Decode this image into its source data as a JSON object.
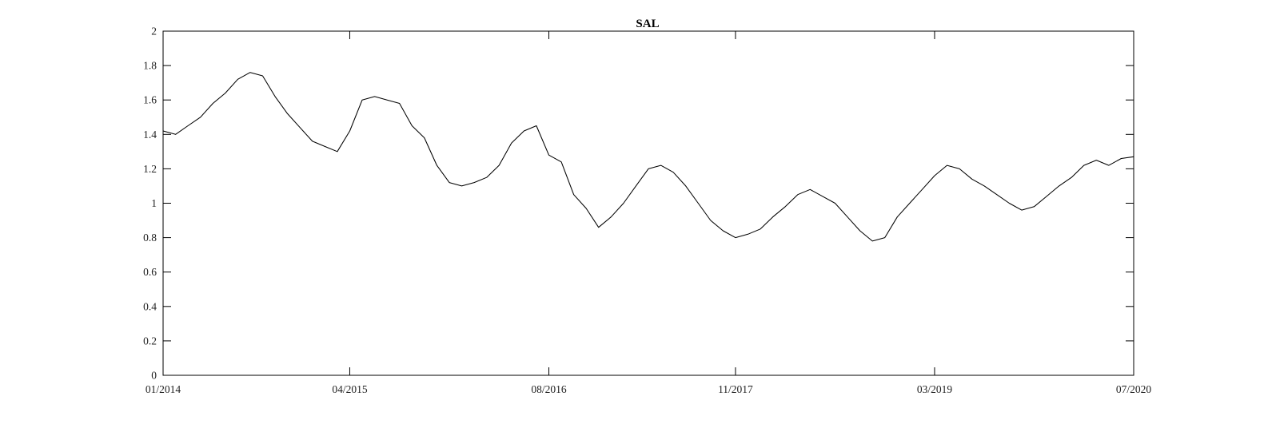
{
  "chart_data": {
    "type": "line",
    "title": "SAL",
    "xlabel": "",
    "ylabel": "",
    "x_range": [
      "01/2014",
      "07/2020"
    ],
    "x_ticks": [
      "01/2014",
      "04/2015",
      "08/2016",
      "11/2017",
      "03/2019",
      "07/2020"
    ],
    "ylim": [
      0,
      2
    ],
    "y_ticks": [
      "0",
      "0.2",
      "0.4",
      "0.6",
      "0.8",
      "1",
      "1.2",
      "1.4",
      "1.6",
      "1.8",
      "2"
    ],
    "grid": false,
    "legend": "none",
    "line_color": "#000000",
    "series": [
      {
        "x": [
          "01/2014",
          "02/2014",
          "03/2014",
          "04/2014",
          "05/2014",
          "06/2014",
          "07/2014",
          "08/2014",
          "09/2014",
          "10/2014",
          "11/2014",
          "12/2014",
          "01/2015",
          "02/2015",
          "03/2015",
          "04/2015",
          "05/2015",
          "06/2015",
          "07/2015",
          "08/2015",
          "09/2015",
          "10/2015",
          "11/2015",
          "12/2015",
          "01/2016",
          "02/2016",
          "03/2016",
          "04/2016",
          "05/2016",
          "06/2016",
          "07/2016",
          "08/2016",
          "09/2016",
          "10/2016",
          "11/2016",
          "12/2016",
          "01/2017",
          "02/2017",
          "03/2017",
          "04/2017",
          "05/2017",
          "06/2017",
          "07/2017",
          "08/2017",
          "09/2017",
          "10/2017",
          "11/2017",
          "12/2017",
          "01/2018",
          "02/2018",
          "03/2018",
          "04/2018",
          "05/2018",
          "06/2018",
          "07/2018",
          "08/2018",
          "09/2018",
          "10/2018",
          "11/2018",
          "12/2018",
          "01/2019",
          "02/2019",
          "03/2019",
          "04/2019",
          "05/2019",
          "06/2019",
          "07/2019",
          "08/2019",
          "09/2019",
          "10/2019",
          "11/2019",
          "12/2019",
          "01/2020",
          "02/2020",
          "03/2020",
          "04/2020",
          "05/2020",
          "06/2020",
          "07/2020"
        ],
        "values": [
          1.42,
          1.4,
          1.45,
          1.5,
          1.58,
          1.64,
          1.72,
          1.76,
          1.74,
          1.62,
          1.52,
          1.44,
          1.36,
          1.33,
          1.3,
          1.42,
          1.6,
          1.62,
          1.6,
          1.58,
          1.45,
          1.38,
          1.22,
          1.12,
          1.1,
          1.12,
          1.15,
          1.22,
          1.35,
          1.42,
          1.45,
          1.28,
          1.24,
          1.05,
          0.97,
          0.86,
          0.92,
          1.0,
          1.1,
          1.2,
          1.22,
          1.18,
          1.1,
          1.0,
          0.9,
          0.84,
          0.8,
          0.82,
          0.85,
          0.92,
          0.98,
          1.05,
          1.08,
          1.04,
          1.0,
          0.92,
          0.84,
          0.78,
          0.8,
          0.92,
          1.0,
          1.08,
          1.16,
          1.22,
          1.2,
          1.14,
          1.1,
          1.05,
          1.0,
          0.96,
          0.98,
          1.04,
          1.1,
          1.15,
          1.22,
          1.25,
          1.22,
          1.26,
          1.27
        ]
      }
    ]
  }
}
